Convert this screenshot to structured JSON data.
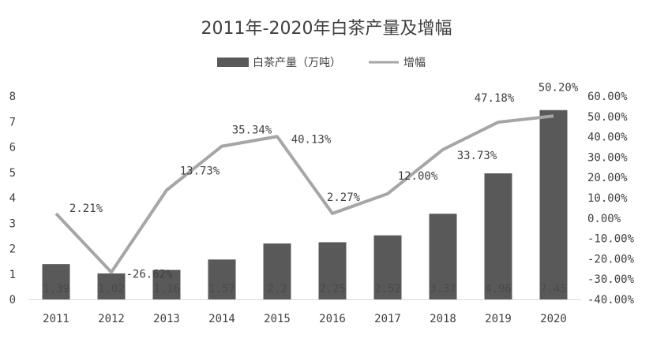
{
  "chart_data": {
    "type": "bar+line",
    "title": "2011年-2020年白茶产量及增幅",
    "categories": [
      "2011",
      "2012",
      "2013",
      "2014",
      "2015",
      "2016",
      "2017",
      "2018",
      "2019",
      "2020"
    ],
    "series": [
      {
        "name": "白茶产量（万吨）",
        "type": "bar",
        "axis": "left",
        "values": [
          1.39,
          1.02,
          1.16,
          1.57,
          2.2,
          2.25,
          2.52,
          3.37,
          4.96,
          7.45
        ],
        "labels": [
          "1.39",
          "1.02",
          "1.16",
          "1.57",
          "2.2",
          "2.25",
          "2.52",
          "3.37",
          "4.96",
          "7.45"
        ]
      },
      {
        "name": "增幅",
        "type": "line",
        "axis": "right",
        "values": [
          2.21,
          -26.62,
          13.73,
          35.34,
          40.13,
          2.27,
          12.0,
          33.73,
          47.18,
          50.2
        ],
        "labels": [
          "2.21%",
          "-26.62%",
          "13.73%",
          "35.34%",
          "40.13%",
          "2.27%",
          "12.00%",
          "33.73%",
          "47.18%",
          "50.20%"
        ]
      }
    ],
    "left_axis": {
      "ylim": [
        0,
        8
      ],
      "ticks": [
        "0",
        "1",
        "2",
        "3",
        "4",
        "5",
        "6",
        "7",
        "8"
      ]
    },
    "right_axis": {
      "ylim": [
        -40,
        60
      ],
      "ticks": [
        "-40.00%",
        "-30.00%",
        "-20.00%",
        "-10.00%",
        "0.00%",
        "10.00%",
        "20.00%",
        "30.00%",
        "40.00%",
        "50.00%",
        "60.00%"
      ]
    },
    "legend_position": "top-center",
    "grid": false,
    "colors": {
      "bar": "#595959",
      "line": "#a6a6a6",
      "text": "#404040",
      "axis": "#d9d9d9"
    }
  }
}
